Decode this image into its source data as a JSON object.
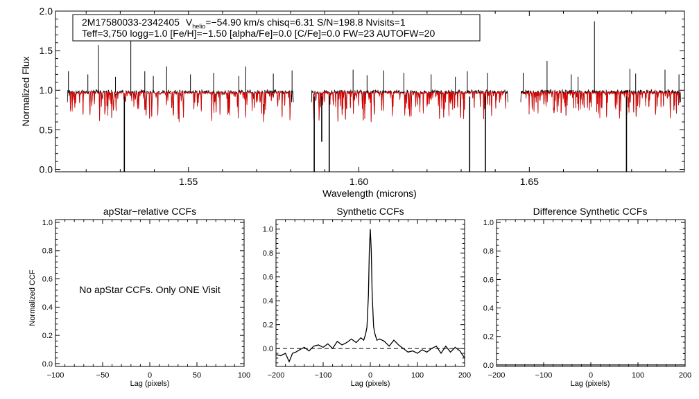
{
  "chart_data": [
    {
      "type": "line",
      "name": "spectrum",
      "star_id": "2M17580033-2342405",
      "vhelio_label": "V",
      "vhelio_sub": "helio",
      "vhelio_value": "=−54.90 km/s  chisq=6.31  S/N=198.8  Nvisits=1",
      "params_line": "Teff=3,750 logg=1.0 [Fe/H]=−1.50 [alpha/Fe]=0.0 [C/Fe]=0.0 FW=23 AUTOFW=20",
      "xlabel": "Wavelength (microns)",
      "ylabel": "Normalized Flux",
      "xlim": [
        1.511,
        1.6955
      ],
      "ylim": [
        -0.03,
        2.0
      ],
      "x_ticks": [
        1.55,
        1.6,
        1.65
      ],
      "x_tick_labels": [
        "1.55",
        "1.60",
        "1.65"
      ],
      "y_ticks": [
        0.0,
        0.5,
        1.0,
        1.5,
        2.0
      ],
      "y_tick_labels": [
        "0.0",
        "0.5",
        "1.0",
        "1.5",
        "2.0"
      ],
      "chip_ranges": [
        [
          1.5145,
          1.5808
        ],
        [
          1.5861,
          1.6437
        ],
        [
          1.6475,
          1.6944
        ]
      ],
      "continuum": 0.97,
      "series": [
        {
          "name": "observed",
          "color": "#000000"
        },
        {
          "name": "model",
          "color": "#e00000"
        }
      ],
      "emission_lines": [
        {
          "x": 1.5148,
          "y": 1.24
        },
        {
          "x": 1.5205,
          "y": 1.2
        },
        {
          "x": 1.5236,
          "y": 1.57
        },
        {
          "x": 1.5286,
          "y": 1.17
        },
        {
          "x": 1.5331,
          "y": 1.65
        },
        {
          "x": 1.5372,
          "y": 1.24
        },
        {
          "x": 1.5397,
          "y": 1.18
        },
        {
          "x": 1.5436,
          "y": 1.3
        },
        {
          "x": 1.5506,
          "y": 1.2
        },
        {
          "x": 1.5574,
          "y": 1.22
        },
        {
          "x": 1.5648,
          "y": 1.18
        },
        {
          "x": 1.5668,
          "y": 1.3
        },
        {
          "x": 1.5749,
          "y": 1.21
        },
        {
          "x": 1.5804,
          "y": 1.25
        },
        {
          "x": 1.5983,
          "y": 1.26
        },
        {
          "x": 1.6024,
          "y": 1.19
        },
        {
          "x": 1.6073,
          "y": 1.25
        },
        {
          "x": 1.6132,
          "y": 1.22
        },
        {
          "x": 1.6212,
          "y": 1.2
        },
        {
          "x": 1.6283,
          "y": 1.17
        },
        {
          "x": 1.6318,
          "y": 1.24
        },
        {
          "x": 1.6377,
          "y": 1.22
        },
        {
          "x": 1.6482,
          "y": 1.22
        },
        {
          "x": 1.6552,
          "y": 1.37
        },
        {
          "x": 1.6623,
          "y": 1.2
        },
        {
          "x": 1.6643,
          "y": 1.17
        },
        {
          "x": 1.6691,
          "y": 1.87
        },
        {
          "x": 1.6795,
          "y": 1.27
        },
        {
          "x": 1.6812,
          "y": 1.21
        },
        {
          "x": 1.6898,
          "y": 1.26
        },
        {
          "x": 1.6939,
          "y": 1.2
        }
      ],
      "deep_absorption": [
        {
          "x": 1.5312,
          "y": -0.03
        },
        {
          "x": 1.5869,
          "y": -0.03
        },
        {
          "x": 1.5891,
          "y": 0.35
        },
        {
          "x": 1.5913,
          "y": -0.03
        },
        {
          "x": 1.6325,
          "y": -0.03
        },
        {
          "x": 1.6371,
          "y": -0.03
        },
        {
          "x": 1.6785,
          "y": -0.03
        }
      ]
    },
    {
      "type": "line",
      "name": "apstar-relative-ccf",
      "title": "apStar−relative CCFs",
      "xlabel": "Lag (pixels)",
      "ylabel": "Normalized CCF",
      "xlim": [
        -100,
        100
      ],
      "ylim": [
        -0.02,
        1.02
      ],
      "x_ticks": [
        -100,
        -50,
        0,
        50,
        100
      ],
      "x_tick_labels": [
        "−100",
        "−50",
        "0",
        "50",
        "100"
      ],
      "y_ticks": [
        0.0,
        0.2,
        0.4,
        0.6,
        0.8,
        1.0
      ],
      "y_tick_labels": [
        "0.0",
        "0.2",
        "0.4",
        "0.6",
        "0.8",
        "1.0"
      ],
      "annotation": "No apStar CCFs.  Only ONE Visit",
      "series": []
    },
    {
      "type": "line",
      "name": "synthetic-ccf",
      "title": "Synthetic CCFs",
      "xlabel": "Lag (pixels)",
      "xlim": [
        -200,
        200
      ],
      "ylim": [
        -0.15,
        1.08
      ],
      "x_ticks": [
        -200,
        -100,
        0,
        100,
        200
      ],
      "x_tick_labels": [
        "−200",
        "−100",
        "0",
        "100",
        "200"
      ],
      "y_ticks": [
        0.0,
        0.2,
        0.4,
        0.6,
        0.8,
        1.0
      ],
      "y_tick_labels": [
        "0.0",
        "0.2",
        "0.4",
        "0.6",
        "0.8",
        "1.0"
      ],
      "reference_line_y": 0.0,
      "series": [
        {
          "name": "ccf",
          "color": "#000000",
          "x": [
            -200,
            -190,
            -180,
            -172,
            -165,
            -158,
            -150,
            -140,
            -130,
            -120,
            -110,
            -100,
            -90,
            -80,
            -70,
            -60,
            -50,
            -40,
            -30,
            -20,
            -14,
            -10,
            -7,
            -4,
            -2,
            0,
            2,
            4,
            7,
            10,
            14,
            20,
            30,
            40,
            50,
            60,
            70,
            80,
            90,
            100,
            110,
            120,
            130,
            140,
            150,
            160,
            170,
            180,
            190,
            200
          ],
          "y": [
            -0.05,
            -0.06,
            -0.04,
            -0.11,
            -0.04,
            -0.03,
            -0.01,
            0.01,
            -0.02,
            0.02,
            0.03,
            0.01,
            0.04,
            0.0,
            0.06,
            0.03,
            0.05,
            0.08,
            0.05,
            0.09,
            0.07,
            0.12,
            0.18,
            0.45,
            0.82,
            1.0,
            0.82,
            0.45,
            0.18,
            0.12,
            0.07,
            0.08,
            0.06,
            0.02,
            0.07,
            0.03,
            0.0,
            -0.03,
            -0.02,
            -0.04,
            -0.01,
            -0.03,
            0.0,
            0.02,
            -0.04,
            0.02,
            -0.03,
            0.01,
            -0.02,
            -0.08
          ]
        }
      ]
    },
    {
      "type": "line",
      "name": "difference-synthetic-ccf",
      "title": "Difference Synthetic CCFs",
      "xlabel": "Lag (pixels)",
      "xlim": [
        -200,
        200
      ],
      "ylim": [
        -0.01,
        1.02
      ],
      "x_ticks": [
        -200,
        -100,
        0,
        100,
        200
      ],
      "x_tick_labels": [
        "−200",
        "−100",
        "0",
        "100",
        "200"
      ],
      "y_ticks": [
        0.0,
        0.2,
        0.4,
        0.6,
        0.8,
        1.0
      ],
      "y_tick_labels": [
        "0.0",
        "0.2",
        "0.4",
        "0.6",
        "0.8",
        "1.0"
      ],
      "series": [
        {
          "name": "difference",
          "color": "#000000",
          "x": [
            -200,
            200
          ],
          "y": [
            0.0,
            0.0
          ]
        }
      ]
    }
  ]
}
